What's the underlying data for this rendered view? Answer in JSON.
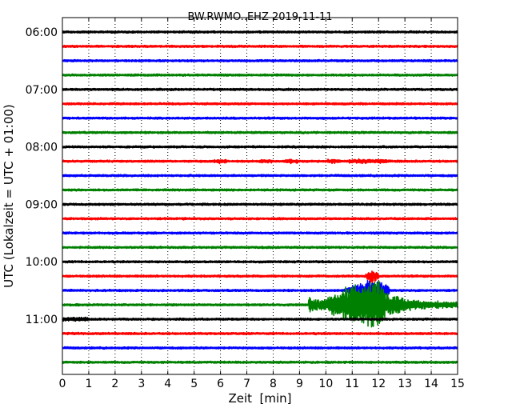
{
  "chart_data": {
    "type": "line",
    "title": "BW.RWMO..EHZ 2019-11-11",
    "xlabel": "Zeit  [min]",
    "ylabel": "UTC (Lokalzeit = UTC + 01:00)",
    "xlim": [
      0,
      15
    ],
    "x_ticks": [
      "0",
      "1",
      "2",
      "3",
      "4",
      "5",
      "6",
      "7",
      "8",
      "9",
      "10",
      "11",
      "12",
      "13",
      "14",
      "15"
    ],
    "y_tick_labels": [
      "06:00",
      "07:00",
      "08:00",
      "09:00",
      "10:00",
      "11:00"
    ],
    "grid": "vertical dotted",
    "color_cycle": [
      "#000000",
      "#ff0000",
      "#0000ff",
      "#008000"
    ],
    "trace_starts": [
      "06:00",
      "06:15",
      "06:30",
      "06:45",
      "07:00",
      "07:15",
      "07:30",
      "07:45",
      "08:00",
      "08:15",
      "08:30",
      "08:45",
      "09:00",
      "09:15",
      "09:30",
      "09:45",
      "10:00",
      "10:15",
      "10:30",
      "10:45",
      "11:00",
      "11:15",
      "11:30",
      "11:45"
    ],
    "events": [
      {
        "trace": "10:45",
        "start_min": 9.35,
        "end_min": 15,
        "peak_min": 11.8
      },
      {
        "trace": "10:30",
        "start_min": 10.6,
        "end_min": 12.4,
        "peak_min": 11.8
      },
      {
        "trace": "10:15",
        "start_min": 11.5,
        "end_min": 12.0,
        "peak_min": 11.75
      },
      {
        "trace": "08:15",
        "start_min": 5.7,
        "end_min": 12.8,
        "peak_min": 11.6
      }
    ]
  }
}
